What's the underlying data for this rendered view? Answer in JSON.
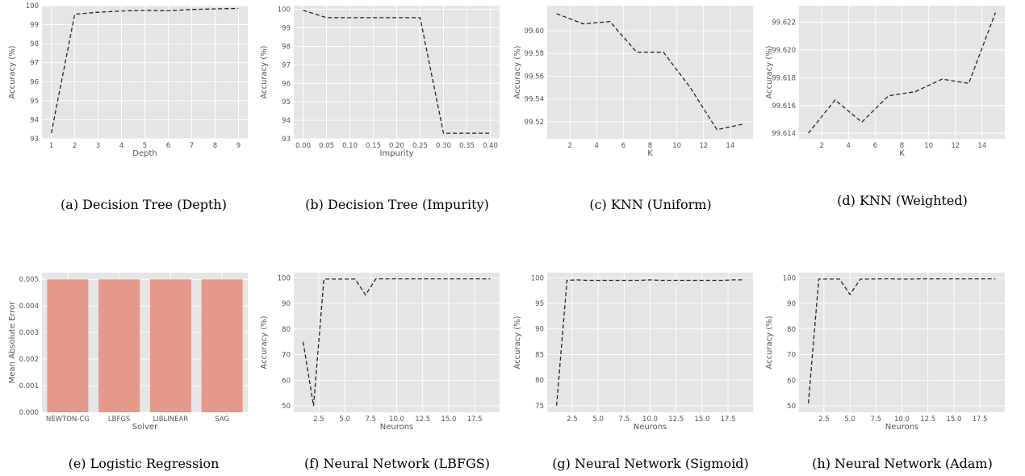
{
  "chart_data": [
    {
      "type": "line",
      "caption": "(a) Decision Tree (Depth)",
      "xlabel": "Depth",
      "ylabel": "Accuracy (%)",
      "x": [
        1,
        2,
        3,
        4,
        5,
        6,
        7,
        8,
        9
      ],
      "y": [
        93.3,
        99.55,
        99.65,
        99.72,
        99.75,
        99.73,
        99.8,
        99.83,
        99.85
      ],
      "xlim": [
        0.6,
        9.4
      ],
      "ylim": [
        93,
        100
      ],
      "xticks": [
        1,
        2,
        3,
        4,
        5,
        6,
        7,
        8,
        9
      ],
      "xtick_labels": [
        "1",
        "2",
        "3",
        "4",
        "5",
        "6",
        "7",
        "8",
        "9"
      ],
      "yticks": [
        93,
        94,
        95,
        96,
        97,
        98,
        99,
        100
      ],
      "ytick_labels": [
        "93",
        "94",
        "95",
        "96",
        "97",
        "98",
        "99",
        "100"
      ]
    },
    {
      "type": "line",
      "caption": "(b) Decision Tree (Impurity)",
      "xlabel": "Impurity",
      "ylabel": "Accuracy (%)",
      "x": [
        0.0,
        0.05,
        0.1,
        0.15,
        0.2,
        0.25,
        0.3,
        0.35,
        0.4
      ],
      "y": [
        99.95,
        99.55,
        99.55,
        99.55,
        99.55,
        99.55,
        93.3,
        93.3,
        93.3
      ],
      "xlim": [
        -0.02,
        0.42
      ],
      "ylim": [
        93,
        100.2
      ],
      "xticks": [
        0,
        0.05,
        0.1,
        0.15,
        0.2,
        0.25,
        0.3,
        0.35,
        0.4
      ],
      "xtick_labels": [
        "0.00",
        "0.05",
        "0.10",
        "0.15",
        "0.20",
        "0.25",
        "0.30",
        "0.35",
        "0.40"
      ],
      "yticks": [
        93,
        94,
        95,
        96,
        97,
        98,
        99,
        100
      ],
      "ytick_labels": [
        "93",
        "94",
        "95",
        "96",
        "97",
        "98",
        "99",
        "100"
      ]
    },
    {
      "type": "line",
      "caption": "(c) KNN (Uniform)",
      "xlabel": "K",
      "ylabel": "Accuracy (%)",
      "x": [
        1,
        3,
        5,
        7,
        9,
        11,
        13,
        15
      ],
      "y": [
        99.615,
        99.606,
        99.608,
        99.581,
        99.581,
        99.55,
        99.513,
        99.518
      ],
      "xlim": [
        0.3,
        15.7
      ],
      "ylim": [
        99.505,
        99.622
      ],
      "xticks": [
        2,
        4,
        6,
        8,
        10,
        12,
        14
      ],
      "xtick_labels": [
        "2",
        "4",
        "6",
        "8",
        "10",
        "12",
        "14"
      ],
      "yticks": [
        99.52,
        99.54,
        99.56,
        99.58,
        99.6
      ],
      "ytick_labels": [
        "99.52",
        "99.54",
        "99.56",
        "99.58",
        "99.60"
      ]
    },
    {
      "type": "line",
      "caption": "(d) KNN (Weighted)",
      "xlabel": "K",
      "ylabel": "Accuracy (%)",
      "x": [
        1,
        3,
        5,
        7,
        9,
        11,
        13,
        15
      ],
      "y": [
        99.614,
        99.6164,
        99.6148,
        99.6167,
        99.617,
        99.6179,
        99.6176,
        99.6227
      ],
      "xlim": [
        0.3,
        15.7
      ],
      "ylim": [
        99.6136,
        99.6232
      ],
      "xticks": [
        2,
        4,
        6,
        8,
        10,
        12,
        14
      ],
      "xtick_labels": [
        "2",
        "4",
        "6",
        "8",
        "10",
        "12",
        "14"
      ],
      "yticks": [
        99.614,
        99.616,
        99.618,
        99.62,
        99.622
      ],
      "ytick_labels": [
        "99.614",
        "99.616",
        "99.618",
        "99.620",
        "99.622"
      ]
    },
    {
      "type": "bar",
      "caption": "(e) Logistic Regression",
      "xlabel": "Solver",
      "ylabel": "Mean Absolute Error",
      "categories": [
        "NEWTON-CG",
        "LBFGS",
        "LIBLINEAR",
        "SAG"
      ],
      "values": [
        0.005,
        0.005,
        0.005,
        0.005
      ],
      "ylim": [
        0,
        0.00525
      ],
      "yticks": [
        0,
        0.001,
        0.002,
        0.003,
        0.004,
        0.005
      ],
      "ytick_labels": [
        "0.000",
        "0.001",
        "0.002",
        "0.003",
        "0.004",
        "0.005"
      ]
    },
    {
      "type": "line",
      "caption": "(f) Neural Network (LBFGS)",
      "xlabel": "Neurons",
      "ylabel": "Accuracy (%)",
      "x": [
        1,
        2,
        3,
        4,
        5,
        6,
        7,
        8,
        9,
        10,
        11,
        12,
        13,
        14,
        15,
        16,
        17,
        18,
        19
      ],
      "y": [
        75,
        50,
        99.5,
        99.5,
        99.5,
        99.5,
        93.3,
        99.6,
        99.6,
        99.6,
        99.6,
        99.6,
        99.6,
        99.6,
        99.6,
        99.6,
        99.6,
        99.6,
        99.6
      ],
      "xlim": [
        0.1,
        19.9
      ],
      "ylim": [
        47.5,
        102
      ],
      "xticks": [
        2.5,
        5,
        7.5,
        10,
        12.5,
        15,
        17.5
      ],
      "xtick_labels": [
        "2.5",
        "5.0",
        "7.5",
        "10.0",
        "12.5",
        "15.0",
        "17.5"
      ],
      "yticks": [
        50,
        60,
        70,
        80,
        90,
        100
      ],
      "ytick_labels": [
        "50",
        "60",
        "70",
        "80",
        "90",
        "100"
      ]
    },
    {
      "type": "line",
      "caption": "(g) Neural Network (Sigmoid)",
      "xlabel": "Neurons",
      "ylabel": "Accuracy (%)",
      "x": [
        1,
        2,
        3,
        4,
        5,
        6,
        7,
        8,
        9,
        10,
        11,
        12,
        13,
        14,
        15,
        16,
        17,
        18,
        19
      ],
      "y": [
        75,
        99.5,
        99.6,
        99.5,
        99.5,
        99.5,
        99.5,
        99.5,
        99.5,
        99.6,
        99.5,
        99.5,
        99.5,
        99.5,
        99.5,
        99.5,
        99.5,
        99.6,
        99.6
      ],
      "xlim": [
        0.1,
        19.9
      ],
      "ylim": [
        73.7,
        101
      ],
      "xticks": [
        2.5,
        5,
        7.5,
        10,
        12.5,
        15,
        17.5
      ],
      "xtick_labels": [
        "2.5",
        "5.0",
        "7.5",
        "10.0",
        "12.5",
        "15.0",
        "17.5"
      ],
      "yticks": [
        75,
        80,
        85,
        90,
        95,
        100
      ],
      "ytick_labels": [
        "75",
        "80",
        "85",
        "90",
        "95",
        "100"
      ]
    },
    {
      "type": "line",
      "caption": "(h) Neural Network (Adam)",
      "xlabel": "Neurons",
      "ylabel": "Accuracy (%)",
      "x": [
        1,
        2,
        3,
        4,
        5,
        6,
        7,
        8,
        9,
        10,
        11,
        12,
        13,
        14,
        15,
        16,
        17,
        18,
        19
      ],
      "y": [
        51,
        99.5,
        99.5,
        99.5,
        93.5,
        99.5,
        99.5,
        99.6,
        99.6,
        99.5,
        99.5,
        99.6,
        99.6,
        99.6,
        99.6,
        99.6,
        99.6,
        99.6,
        99.6
      ],
      "xlim": [
        0.1,
        19.9
      ],
      "ylim": [
        47.5,
        102
      ],
      "xticks": [
        2.5,
        5,
        7.5,
        10,
        12.5,
        15,
        17.5
      ],
      "xtick_labels": [
        "2.5",
        "5.0",
        "7.5",
        "10.0",
        "12.5",
        "15.0",
        "17.5"
      ],
      "yticks": [
        50,
        60,
        70,
        80,
        90,
        100
      ],
      "ytick_labels": [
        "50",
        "60",
        "70",
        "80",
        "90",
        "100"
      ]
    }
  ]
}
